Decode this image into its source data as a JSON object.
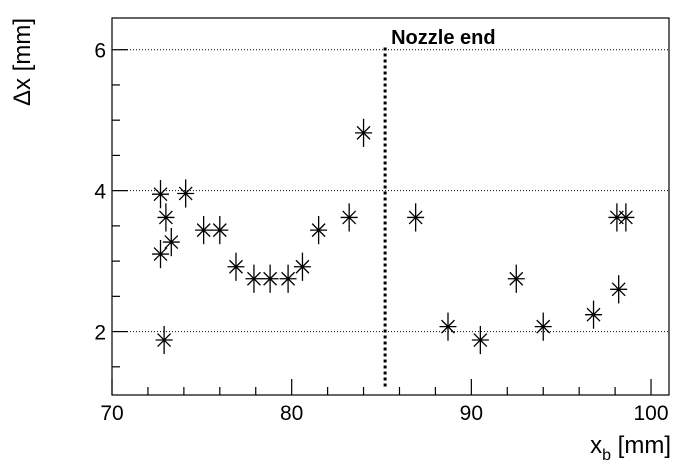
{
  "chart_data": {
    "type": "scatter",
    "ylabel": "Δx [mm]",
    "xlabel_main": "x",
    "xlabel_sub": "b",
    "xlabel_unit": " [mm]",
    "xlim": [
      70,
      101
    ],
    "ylim": [
      1.1,
      6.45
    ],
    "xticks": [
      70,
      80,
      90,
      100
    ],
    "xtick_labels": [
      "70",
      "80",
      "90",
      "100"
    ],
    "yticks": [
      2,
      4,
      6
    ],
    "ytick_labels": [
      "2",
      "4",
      "6"
    ],
    "grid": "horizontal-dotted-at-major-y",
    "marker": "asterisk",
    "annotation": {
      "label": "Nozzle end",
      "x": 85.2,
      "y_from": 1.22,
      "y_to": 6.05
    },
    "points": [
      {
        "x": 72.7,
        "y": 3.95,
        "yerr": 0.2
      },
      {
        "x": 72.7,
        "y": 3.1,
        "yerr": 0.2
      },
      {
        "x": 72.9,
        "y": 1.88,
        "yerr": 0.2
      },
      {
        "x": 73.0,
        "y": 3.62,
        "yerr": 0.2
      },
      {
        "x": 73.3,
        "y": 3.27,
        "yerr": 0.2
      },
      {
        "x": 74.1,
        "y": 3.96,
        "yerr": 0.2
      },
      {
        "x": 75.1,
        "y": 3.44,
        "yerr": 0.2
      },
      {
        "x": 76.0,
        "y": 3.44,
        "yerr": 0.2
      },
      {
        "x": 76.9,
        "y": 2.92,
        "yerr": 0.2
      },
      {
        "x": 77.9,
        "y": 2.75,
        "yerr": 0.2
      },
      {
        "x": 78.8,
        "y": 2.75,
        "yerr": 0.2
      },
      {
        "x": 79.8,
        "y": 2.75,
        "yerr": 0.2
      },
      {
        "x": 80.6,
        "y": 2.92,
        "yerr": 0.2
      },
      {
        "x": 81.5,
        "y": 3.44,
        "yerr": 0.2
      },
      {
        "x": 83.2,
        "y": 3.62,
        "yerr": 0.2
      },
      {
        "x": 84.0,
        "y": 4.82,
        "yerr": 0.2
      },
      {
        "x": 86.9,
        "y": 3.62,
        "yerr": 0.2
      },
      {
        "x": 88.7,
        "y": 2.07,
        "yerr": 0.2
      },
      {
        "x": 90.5,
        "y": 1.88,
        "yerr": 0.2
      },
      {
        "x": 92.5,
        "y": 2.75,
        "yerr": 0.2
      },
      {
        "x": 94.0,
        "y": 2.07,
        "yerr": 0.2
      },
      {
        "x": 96.8,
        "y": 2.24,
        "yerr": 0.2
      },
      {
        "x": 98.1,
        "y": 3.62,
        "yerr": 0.2
      },
      {
        "x": 98.6,
        "y": 3.62,
        "yerr": 0.2
      },
      {
        "x": 98.2,
        "y": 2.6,
        "yerr": 0.2
      }
    ]
  }
}
